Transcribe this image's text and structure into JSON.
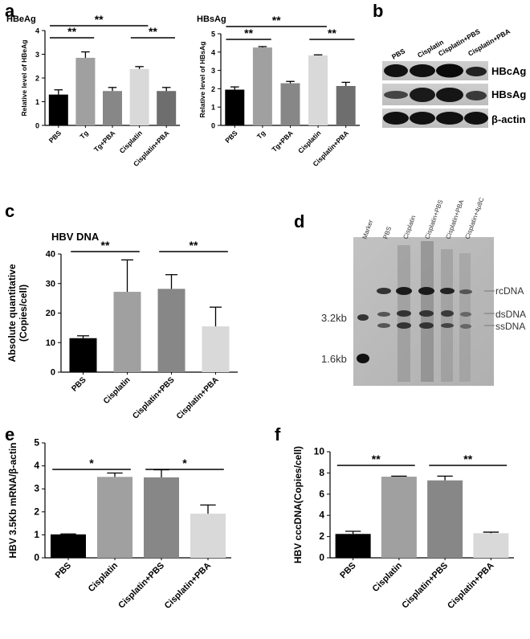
{
  "panels": {
    "a": "a",
    "b": "b",
    "c": "c",
    "d": "d",
    "e": "e",
    "f": "f"
  },
  "chart_data": [
    {
      "id": "a1",
      "type": "bar",
      "title": "HBeAg",
      "ylabel": "Relative level of HBeAg",
      "categories": [
        "PBS",
        "Tg",
        "Tg+PBA",
        "Cisplatin",
        "Cisplatin+PBA"
      ],
      "values": [
        1.3,
        2.85,
        1.45,
        2.38,
        1.45
      ],
      "errors": [
        0.2,
        0.25,
        0.15,
        0.1,
        0.15
      ],
      "ylim": [
        0,
        4
      ],
      "yticks": [
        "0",
        "1",
        "2",
        "3",
        "4"
      ],
      "colors": [
        "#000000",
        "#a0a0a0",
        "#878787",
        "#d9d9d9",
        "#6e6e6e"
      ],
      "significance": [
        {
          "from": 0,
          "to": 1,
          "label": "**"
        },
        {
          "from": 3,
          "to": 4,
          "label": "**"
        },
        {
          "from": 0,
          "to": 3,
          "label": "**"
        }
      ]
    },
    {
      "id": "a2",
      "type": "bar",
      "title": "HBsAg",
      "ylabel": "Relative level of HBsAg",
      "categories": [
        "PBS",
        "Tg",
        "Tg+PBA",
        "Cisplatin",
        "Cisplatin+PBA"
      ],
      "values": [
        1.95,
        4.25,
        2.3,
        3.82,
        2.15
      ],
      "errors": [
        0.15,
        0.05,
        0.1,
        0.03,
        0.2
      ],
      "ylim": [
        0,
        5
      ],
      "yticks": [
        "0",
        "1",
        "2",
        "3",
        "4",
        "5"
      ],
      "colors": [
        "#000000",
        "#a0a0a0",
        "#878787",
        "#d9d9d9",
        "#6e6e6e"
      ],
      "significance": [
        {
          "from": 0,
          "to": 1,
          "label": "**"
        },
        {
          "from": 3,
          "to": 4,
          "label": "**"
        },
        {
          "from": 0,
          "to": 3,
          "label": "**"
        }
      ]
    },
    {
      "id": "c",
      "type": "bar",
      "title": "HBV DNA",
      "ylabel": "Absolute quantitative\n(Copies/cell)",
      "categories": [
        "PBS",
        "Cisplatin",
        "Cisplatin+PBS",
        "Cisplatin+PBA"
      ],
      "values": [
        11.5,
        27.2,
        28.2,
        15.5
      ],
      "errors": [
        0.8,
        10.8,
        4.8,
        6.5
      ],
      "ylim": [
        0,
        40
      ],
      "yticks": [
        "0",
        "10",
        "20",
        "30",
        "40"
      ],
      "colors": [
        "#000000",
        "#a0a0a0",
        "#878787",
        "#d9d9d9"
      ],
      "significance": [
        {
          "from": 0,
          "to": 1,
          "label": "**"
        },
        {
          "from": 2,
          "to": 3,
          "label": "**"
        }
      ]
    },
    {
      "id": "e",
      "type": "bar",
      "title": "",
      "ylabel": "HBV 3.5Kb mRNA/β-actin",
      "categories": [
        "PBS",
        "Cisplatin",
        "Cisplatin+PBS",
        "Cisplatin+PBA"
      ],
      "values": [
        1.02,
        3.52,
        3.5,
        1.92
      ],
      "errors": [
        0.02,
        0.17,
        0.33,
        0.38
      ],
      "ylim": [
        0,
        5
      ],
      "yticks": [
        "0",
        "1",
        "2",
        "3",
        "4",
        "5"
      ],
      "colors": [
        "#000000",
        "#a0a0a0",
        "#878787",
        "#d9d9d9"
      ],
      "significance": [
        {
          "from": 0,
          "to": 1,
          "label": "*"
        },
        {
          "from": 2,
          "to": 3,
          "label": "*"
        }
      ]
    },
    {
      "id": "f",
      "type": "bar",
      "title": "",
      "ylabel": "HBV cccDNA(Copies/cell)",
      "categories": [
        "PBS",
        "Cisplatin",
        "Cisplatin+PBS",
        "Cisplatin+PBA"
      ],
      "values": [
        2.25,
        7.65,
        7.3,
        2.32
      ],
      "errors": [
        0.25,
        0.05,
        0.4,
        0.1
      ],
      "ylim": [
        0,
        10
      ],
      "yticks": [
        "0",
        "2",
        "4",
        "6",
        "8",
        "10"
      ],
      "colors": [
        "#000000",
        "#a0a0a0",
        "#878787",
        "#d9d9d9"
      ],
      "significance": [
        {
          "from": 0,
          "to": 1,
          "label": "**"
        },
        {
          "from": 2,
          "to": 3,
          "label": "**"
        }
      ]
    }
  ],
  "blot_b": {
    "lanes": [
      "PBS",
      "Cisplatin",
      "Cisplatin+PBS",
      "Cisplatin+PBA"
    ],
    "rows": [
      "HBcAg",
      "HBsAg",
      "β-actin"
    ]
  },
  "gel_d": {
    "lanes": [
      "Marker",
      "PBS",
      "Cisplatin",
      "Cisplatin+PBS",
      "Cisplatin+PBA",
      "Cisplatin+4μ8C"
    ],
    "bands_right": [
      "rcDNA",
      "dsDNA",
      "ssDNA"
    ],
    "markers_left": [
      "3.2kb",
      "1.6kb"
    ]
  }
}
